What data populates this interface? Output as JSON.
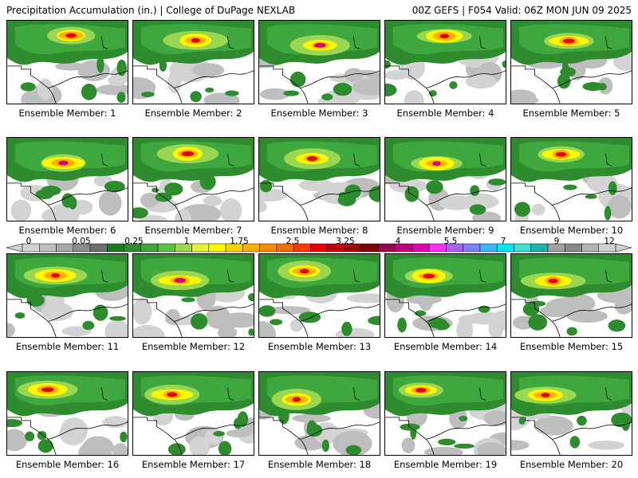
{
  "header": {
    "left": "Precipitation Accumulation (in.) | College of DuPage NEXLAB",
    "right": "00Z GEFS | F054 Valid: 06Z MON JUN 09 2025"
  },
  "colorbar": {
    "labels": [
      "0",
      "0.05",
      "0.25",
      "1",
      "1.75",
      "2.5",
      "3.25",
      "4",
      "5.5",
      "7",
      "9",
      "12"
    ],
    "colors": [
      "#d3d3d3",
      "#bebebe",
      "#a8a8a8",
      "#8c8c8c",
      "#6e6e6e",
      "#1f7a1f",
      "#2e8b2e",
      "#3ea83e",
      "#5cc247",
      "#9ad64f",
      "#e6f23a",
      "#fff700",
      "#ffd400",
      "#ffb000",
      "#ff8c00",
      "#ff6a00",
      "#ff3b00",
      "#e80000",
      "#c00000",
      "#a00000",
      "#800000",
      "#9a0050",
      "#c0007a",
      "#e000b0",
      "#ff33ff",
      "#b060ff",
      "#7f7fff",
      "#3cb4ff",
      "#00e5ff",
      "#40e0d0",
      "#20b2aa",
      "#a0a0a0",
      "#888888",
      "#b4b4b4",
      "#d0d0d0"
    ]
  },
  "members": [
    {
      "label": "Ensemble Member: 1"
    },
    {
      "label": "Ensemble Member: 2"
    },
    {
      "label": "Ensemble Member: 3"
    },
    {
      "label": "Ensemble Member: 4"
    },
    {
      "label": "Ensemble Member: 5"
    },
    {
      "label": "Ensemble Member: 6"
    },
    {
      "label": "Ensemble Member: 7"
    },
    {
      "label": "Ensemble Member: 8"
    },
    {
      "label": "Ensemble Member: 9"
    },
    {
      "label": "Ensemble Member: 10"
    },
    {
      "label": "Ensemble Member: 11"
    },
    {
      "label": "Ensemble Member: 12"
    },
    {
      "label": "Ensemble Member: 13"
    },
    {
      "label": "Ensemble Member: 14"
    },
    {
      "label": "Ensemble Member: 15"
    },
    {
      "label": "Ensemble Member: 16"
    },
    {
      "label": "Ensemble Member: 17"
    },
    {
      "label": "Ensemble Member: 18"
    },
    {
      "label": "Ensemble Member: 19"
    },
    {
      "label": "Ensemble Member: 20"
    }
  ]
}
